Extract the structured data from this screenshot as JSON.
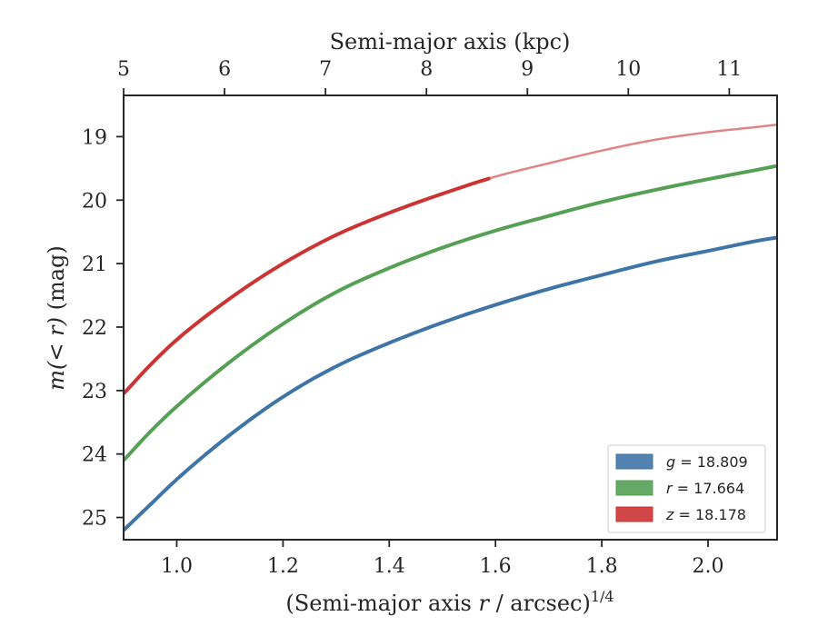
{
  "chart_data": {
    "type": "line",
    "x": [
      0.9,
      0.95,
      1.0,
      1.1,
      1.2,
      1.3,
      1.4,
      1.5,
      1.6,
      1.7,
      1.8,
      1.9,
      2.0,
      2.1,
      2.13
    ],
    "xlabel_main": "(Semi-major axis ",
    "xlabel_var": "r",
    "xlabel_mid": " / arcsec)",
    "xlabel_exp": "1/4",
    "top_xlabel": "Semi-major axis (kpc)",
    "ylabel_var": "m(< r)",
    "ylabel_unit": " (mag)",
    "xlim": [
      0.9,
      2.13
    ],
    "ylim": [
      25.35,
      18.35
    ],
    "y_inverted": true,
    "x_ticks": [
      1.0,
      1.2,
      1.4,
      1.6,
      1.8,
      2.0
    ],
    "x_tick_labels": [
      "1.0",
      "1.2",
      "1.4",
      "1.6",
      "1.8",
      "2.0"
    ],
    "y_ticks": [
      19,
      20,
      21,
      22,
      23,
      24,
      25
    ],
    "y_tick_labels": [
      "19",
      "20",
      "21",
      "22",
      "23",
      "24",
      "25"
    ],
    "top_ticks": [
      0.9,
      1.09,
      1.28,
      1.47,
      1.66,
      1.85,
      2.04
    ],
    "top_tick_labels": [
      "5",
      "6",
      "7",
      "8",
      "9",
      "10",
      "11"
    ],
    "legend_position": "lower-right",
    "grid": false,
    "series": [
      {
        "name": "g = 18.809",
        "legend_var": "g",
        "legend_value": " = 18.809",
        "color": "#3f74a6",
        "values": [
          25.2,
          24.8,
          24.4,
          23.7,
          23.1,
          22.62,
          22.25,
          21.93,
          21.65,
          21.4,
          21.18,
          20.97,
          20.8,
          20.63,
          20.59
        ]
      },
      {
        "name": "r = 17.664",
        "legend_var": "r",
        "legend_value": " = 17.664",
        "color": "#55a055",
        "values": [
          24.1,
          23.65,
          23.25,
          22.55,
          21.95,
          21.45,
          21.07,
          20.75,
          20.48,
          20.25,
          20.03,
          19.84,
          19.67,
          19.51,
          19.46
        ]
      },
      {
        "name": "z = 18.178",
        "legend_var": "z",
        "legend_value": " = 18.178",
        "color": "#cc3333",
        "faded_color": "#de8585",
        "solid_until": 1.59,
        "values": [
          23.05,
          22.6,
          22.2,
          21.55,
          21.0,
          20.55,
          20.2,
          19.9,
          19.63,
          19.42,
          19.22,
          19.05,
          18.93,
          18.84,
          18.81
        ]
      }
    ]
  }
}
